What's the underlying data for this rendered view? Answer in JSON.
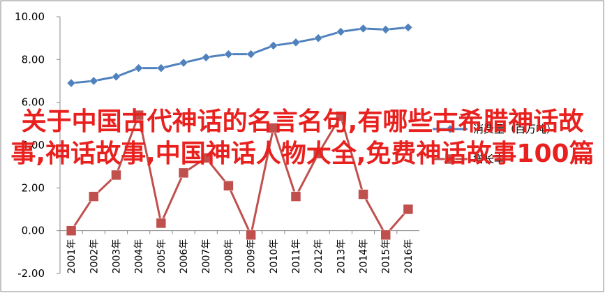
{
  "chart_data": {
    "type": "line",
    "title": "关于中国古代神话的名言名句,有哪些古希腊神话故事,神话故事,中国神话人物大全,免费神话故事100篇",
    "categories": [
      "2001年",
      "2002年",
      "2003年",
      "2004年",
      "2005年",
      "2006年",
      "2007年",
      "2008年",
      "2009年",
      "2010年",
      "2011年",
      "2012年",
      "2013年",
      "2014年",
      "2015年",
      "2016年"
    ],
    "series": [
      {
        "name": "消费量（百万吨）",
        "color": "#4f81bd",
        "marker": "diamond",
        "values": [
          6.9,
          7.0,
          7.2,
          7.6,
          7.6,
          7.85,
          8.1,
          8.25,
          8.25,
          8.65,
          8.8,
          9.0,
          9.3,
          9.45,
          9.4,
          9.5
        ]
      },
      {
        "name": "增长率",
        "color": "#c0504d",
        "marker": "square",
        "values": [
          0.0,
          1.6,
          2.6,
          5.4,
          0.35,
          2.7,
          3.4,
          2.1,
          -0.2,
          4.8,
          1.6,
          3.6,
          5.35,
          1.7,
          -0.2,
          1.0
        ]
      }
    ],
    "ylim": [
      -2,
      10
    ],
    "yticks": [
      {
        "value": -2,
        "label": "-2.00"
      },
      {
        "value": 0,
        "label": "0.00"
      },
      {
        "value": 2,
        "label": "2.00"
      },
      {
        "value": 4,
        "label": "4.00"
      },
      {
        "value": 6,
        "label": "6.00"
      },
      {
        "value": 8,
        "label": "8.00"
      },
      {
        "value": 10,
        "label": "10.00"
      }
    ],
    "grid": false
  }
}
